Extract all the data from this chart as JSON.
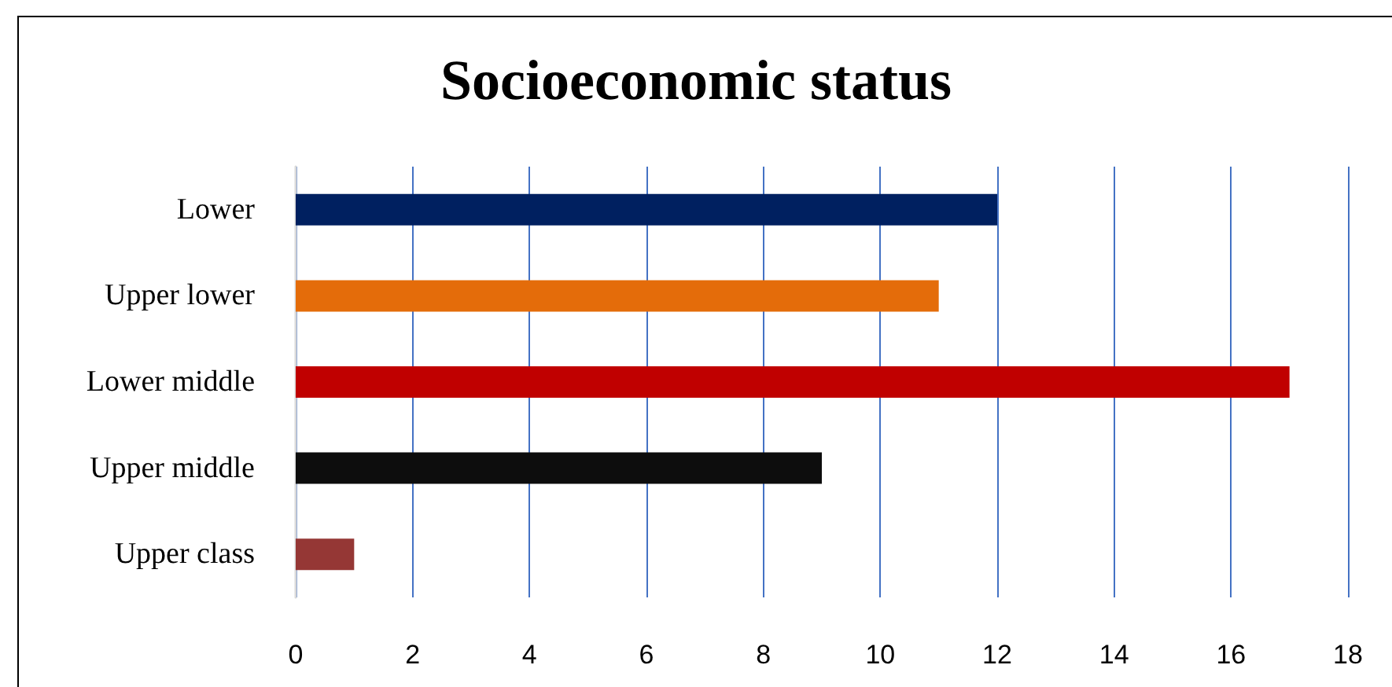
{
  "chart_data": {
    "type": "bar",
    "orientation": "horizontal",
    "title": "Socioeconomic status",
    "categories": [
      "Lower",
      "Upper lower",
      "Lower middle",
      "Upper middle",
      "Upper class"
    ],
    "values": [
      12,
      11,
      17,
      9,
      1
    ],
    "colors": [
      "#002060",
      "#e46c0a",
      "#c00000",
      "#0d0d0d",
      "#953735"
    ],
    "xlim": [
      0,
      18
    ],
    "xticks": [
      0,
      2,
      4,
      6,
      8,
      10,
      12,
      14,
      16,
      18
    ],
    "grid": "x"
  }
}
